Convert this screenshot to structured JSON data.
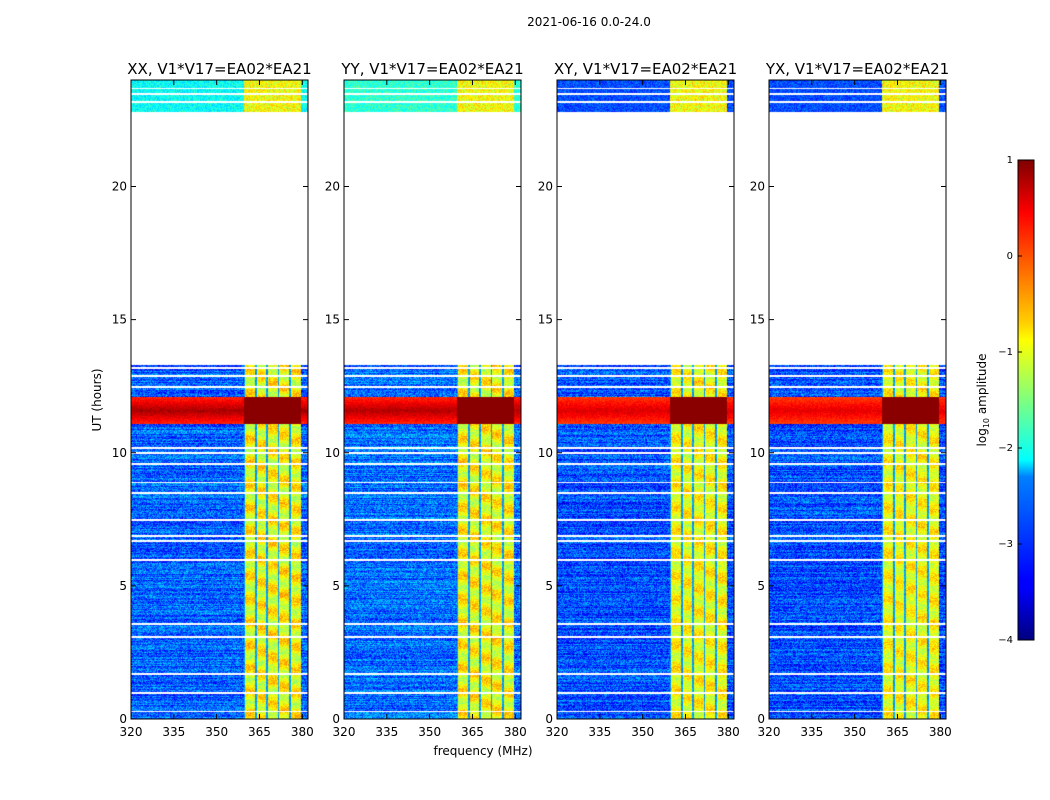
{
  "figure": {
    "suptitle": "2021-06-16 0.0-24.0"
  },
  "chart_data": {
    "type": "heatmap",
    "title": "2021-06-16 0.0-24.0",
    "xlabel": "frequency (MHz)",
    "ylabel": "UT (hours)",
    "xlim": [
      320,
      382
    ],
    "ylim": [
      0,
      24
    ],
    "xticks": [
      "320",
      "335",
      "350",
      "365",
      "380"
    ],
    "yticks": [
      "0",
      "5",
      "10",
      "15",
      "20"
    ],
    "colormap": "jet",
    "colorbar": {
      "label": "log10 amplitude",
      "label_main": "log",
      "label_sub": "10",
      "label_rest": " amplitude",
      "range": [
        -4,
        1
      ],
      "ticks": [
        "−4",
        "−3",
        "−2",
        "−1",
        "0",
        "1"
      ]
    },
    "data_gaps_hours": [
      [
        13.3,
        22.8
      ]
    ],
    "rfi_band_mhz": [
      359.5,
      379.5
    ],
    "strong_rfi_hours": [
      11.1,
      12.1
    ],
    "flagged_rows_hours": [
      0.3,
      1.0,
      1.7,
      3.1,
      3.6,
      6.0,
      6.7,
      6.9,
      7.5,
      8.5,
      8.9,
      9.6,
      10.0,
      10.2,
      12.5,
      12.9,
      13.2,
      23.2,
      23.5,
      23.7
    ],
    "panels": [
      {
        "id": "xx",
        "title": "XX, V1*V17=EA02*EA21",
        "rfi_strength": 1.0,
        "background_level": -2.9,
        "gap_top_level": -2.1
      },
      {
        "id": "yy",
        "title": "YY, V1*V17=EA02*EA21",
        "rfi_strength": 0.95,
        "background_level": -2.85,
        "gap_top_level": -1.9
      },
      {
        "id": "xy",
        "title": "XY, V1*V17=EA02*EA21",
        "rfi_strength": 0.75,
        "background_level": -3.0,
        "gap_top_level": -3.0
      },
      {
        "id": "yx",
        "title": "YX, V1*V17=EA02*EA21",
        "rfi_strength": 0.7,
        "background_level": -3.0,
        "gap_top_level": -3.0
      }
    ]
  }
}
